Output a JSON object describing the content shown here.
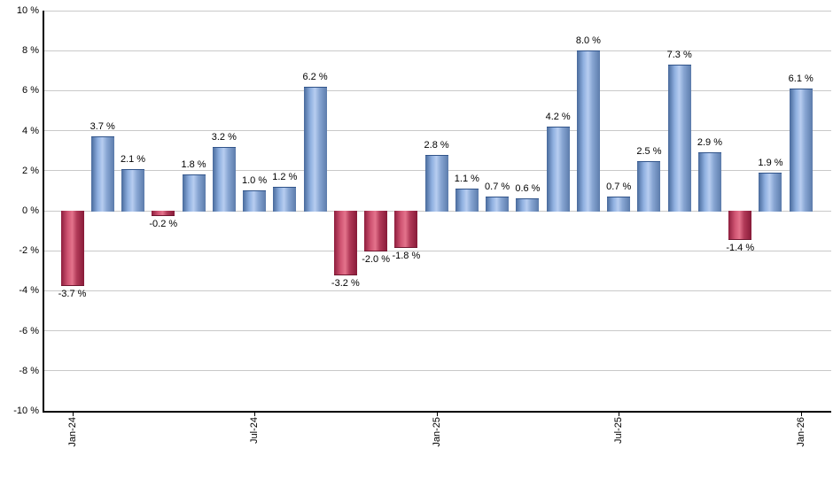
{
  "chart_data": {
    "type": "bar",
    "title": "",
    "xlabel": "",
    "ylabel": "",
    "ylim": [
      -10,
      10
    ],
    "grid": "horizontal",
    "legend": "none",
    "value_suffix": " %",
    "values": [
      -3.7,
      3.7,
      2.1,
      -0.2,
      1.8,
      3.2,
      1.0,
      1.2,
      6.2,
      -3.2,
      -2.0,
      -1.8,
      2.8,
      1.1,
      0.7,
      0.6,
      4.2,
      8.0,
      0.7,
      2.5,
      7.3,
      2.9,
      -1.4,
      1.9,
      6.1
    ],
    "bar_labels": [
      "-3.7 %",
      "3.7 %",
      "2.1 %",
      "-0.2 %",
      "1.8 %",
      "3.2 %",
      "1.0 %",
      "1.2 %",
      "6.2 %",
      "-3.2 %",
      "-2.0 %",
      "-1.8 %",
      "2.8 %",
      "1.1 %",
      "0.7 %",
      "0.6 %",
      "4.2 %",
      "8.0 %",
      "0.7 %",
      "2.5 %",
      "7.3 %",
      "2.9 %",
      "-1.4 %",
      "1.9 %",
      "6.1 %"
    ],
    "x_ticks": [
      {
        "index": 0,
        "label": "Jan-24"
      },
      {
        "index": 6,
        "label": "Jul-24"
      },
      {
        "index": 12,
        "label": "Jan-25"
      },
      {
        "index": 18,
        "label": "Jul-25"
      },
      {
        "index": 24,
        "label": "Jan-26"
      }
    ],
    "y_ticks": [
      {
        "value": 10,
        "label": "10 %"
      },
      {
        "value": 8,
        "label": "8 %"
      },
      {
        "value": 6,
        "label": "6 %"
      },
      {
        "value": 4,
        "label": "4 %"
      },
      {
        "value": 2,
        "label": "2 %"
      },
      {
        "value": 0,
        "label": "0 %"
      },
      {
        "value": -2,
        "label": "-2 %"
      },
      {
        "value": -4,
        "label": "-4 %"
      },
      {
        "value": -6,
        "label": "-6 %"
      },
      {
        "value": -8,
        "label": "-8 %"
      },
      {
        "value": -10,
        "label": "-10 %"
      }
    ],
    "colors": {
      "positive_gradient": [
        "#48699b",
        "#8fb0e0",
        "#b7cdf0",
        "#87a5d2",
        "#5c7cab"
      ],
      "negative_gradient": [
        "#8e1d3d",
        "#cf5472",
        "#e4738c",
        "#b13a58",
        "#871a38"
      ],
      "positive_cap": "#31548a",
      "negative_cap": "#6f1730",
      "grid": "#c9c9c9",
      "axis": "#000000",
      "text": "#000000",
      "background": "#ffffff"
    }
  }
}
